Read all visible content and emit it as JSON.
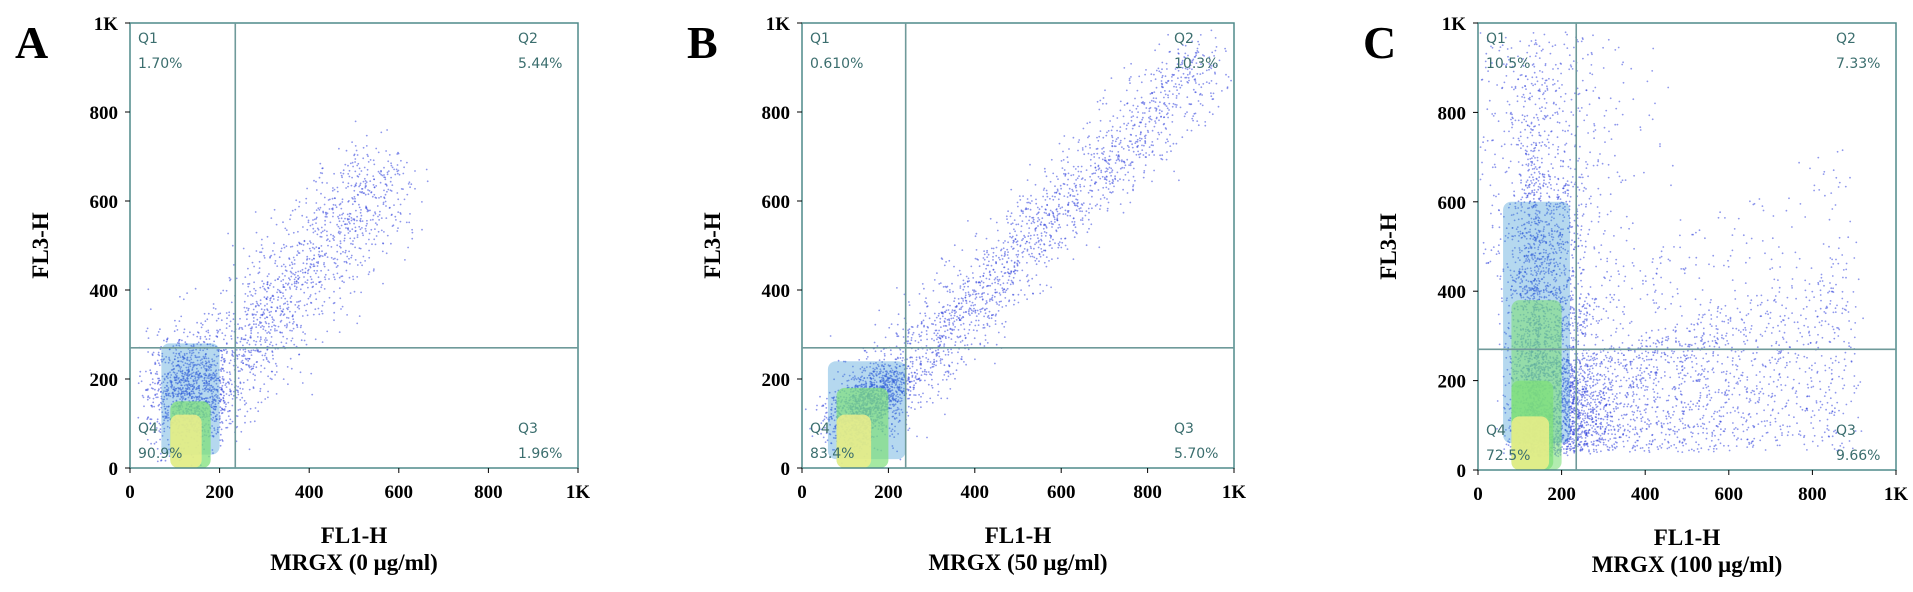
{
  "chart_data": [
    {
      "type": "scatter",
      "panel_label": "A",
      "xlabel": "FL1-H",
      "xlabel2": "MRGX (0 μg/ml)",
      "ylabel": "FL3-H",
      "xlim": [
        0,
        1000
      ],
      "ylim": [
        0,
        1000
      ],
      "x_ticks": [
        "0",
        "200",
        "400",
        "600",
        "800",
        "1K"
      ],
      "y_ticks": [
        "0",
        "200",
        "400",
        "600",
        "800",
        "1K"
      ],
      "gates": {
        "x": 235,
        "y": 270
      },
      "quadrants": [
        {
          "name": "Q1",
          "percent": "1.70%"
        },
        {
          "name": "Q2",
          "percent": "5.44%"
        },
        {
          "name": "Q3",
          "percent": "1.96%"
        },
        {
          "name": "Q4",
          "percent": "90.9%"
        }
      ]
    },
    {
      "type": "scatter",
      "panel_label": "B",
      "xlabel": "FL1-H",
      "xlabel2": "MRGX (50 μg/ml)",
      "ylabel": "FL3-H",
      "xlim": [
        0,
        1000
      ],
      "ylim": [
        0,
        1000
      ],
      "x_ticks": [
        "0",
        "200",
        "400",
        "600",
        "800",
        "1K"
      ],
      "y_ticks": [
        "0",
        "200",
        "400",
        "600",
        "800",
        "1K"
      ],
      "gates": {
        "x": 240,
        "y": 270
      },
      "quadrants": [
        {
          "name": "Q1",
          "percent": "0.610%"
        },
        {
          "name": "Q2",
          "percent": "10.3%"
        },
        {
          "name": "Q3",
          "percent": "5.70%"
        },
        {
          "name": "Q4",
          "percent": "83.4%"
        }
      ]
    },
    {
      "type": "scatter",
      "panel_label": "C",
      "xlabel": "FL1-H",
      "xlabel2": "MRGX (100 μg/ml)",
      "ylabel": "FL3-H",
      "xlim": [
        0,
        1000
      ],
      "ylim": [
        0,
        1000
      ],
      "x_ticks": [
        "0",
        "200",
        "400",
        "600",
        "800",
        "1K"
      ],
      "y_ticks": [
        "0",
        "200",
        "400",
        "600",
        "800",
        "1K"
      ],
      "gates": {
        "x": 235,
        "y": 270
      },
      "quadrants": [
        {
          "name": "Q1",
          "percent": "10.5%"
        },
        {
          "name": "Q2",
          "percent": "7.33%"
        },
        {
          "name": "Q3",
          "percent": "9.66%"
        },
        {
          "name": "Q4",
          "percent": "72.5%"
        }
      ]
    }
  ],
  "colors": {
    "points": "#3344dd",
    "dense": "#2a8fd0",
    "core_green": "#7fe07a",
    "core_yellow": "#f4ef8a",
    "gate_line": "#6f9a9a",
    "frame": "#4f8a8a",
    "quad_text": "#3b6e6e"
  }
}
